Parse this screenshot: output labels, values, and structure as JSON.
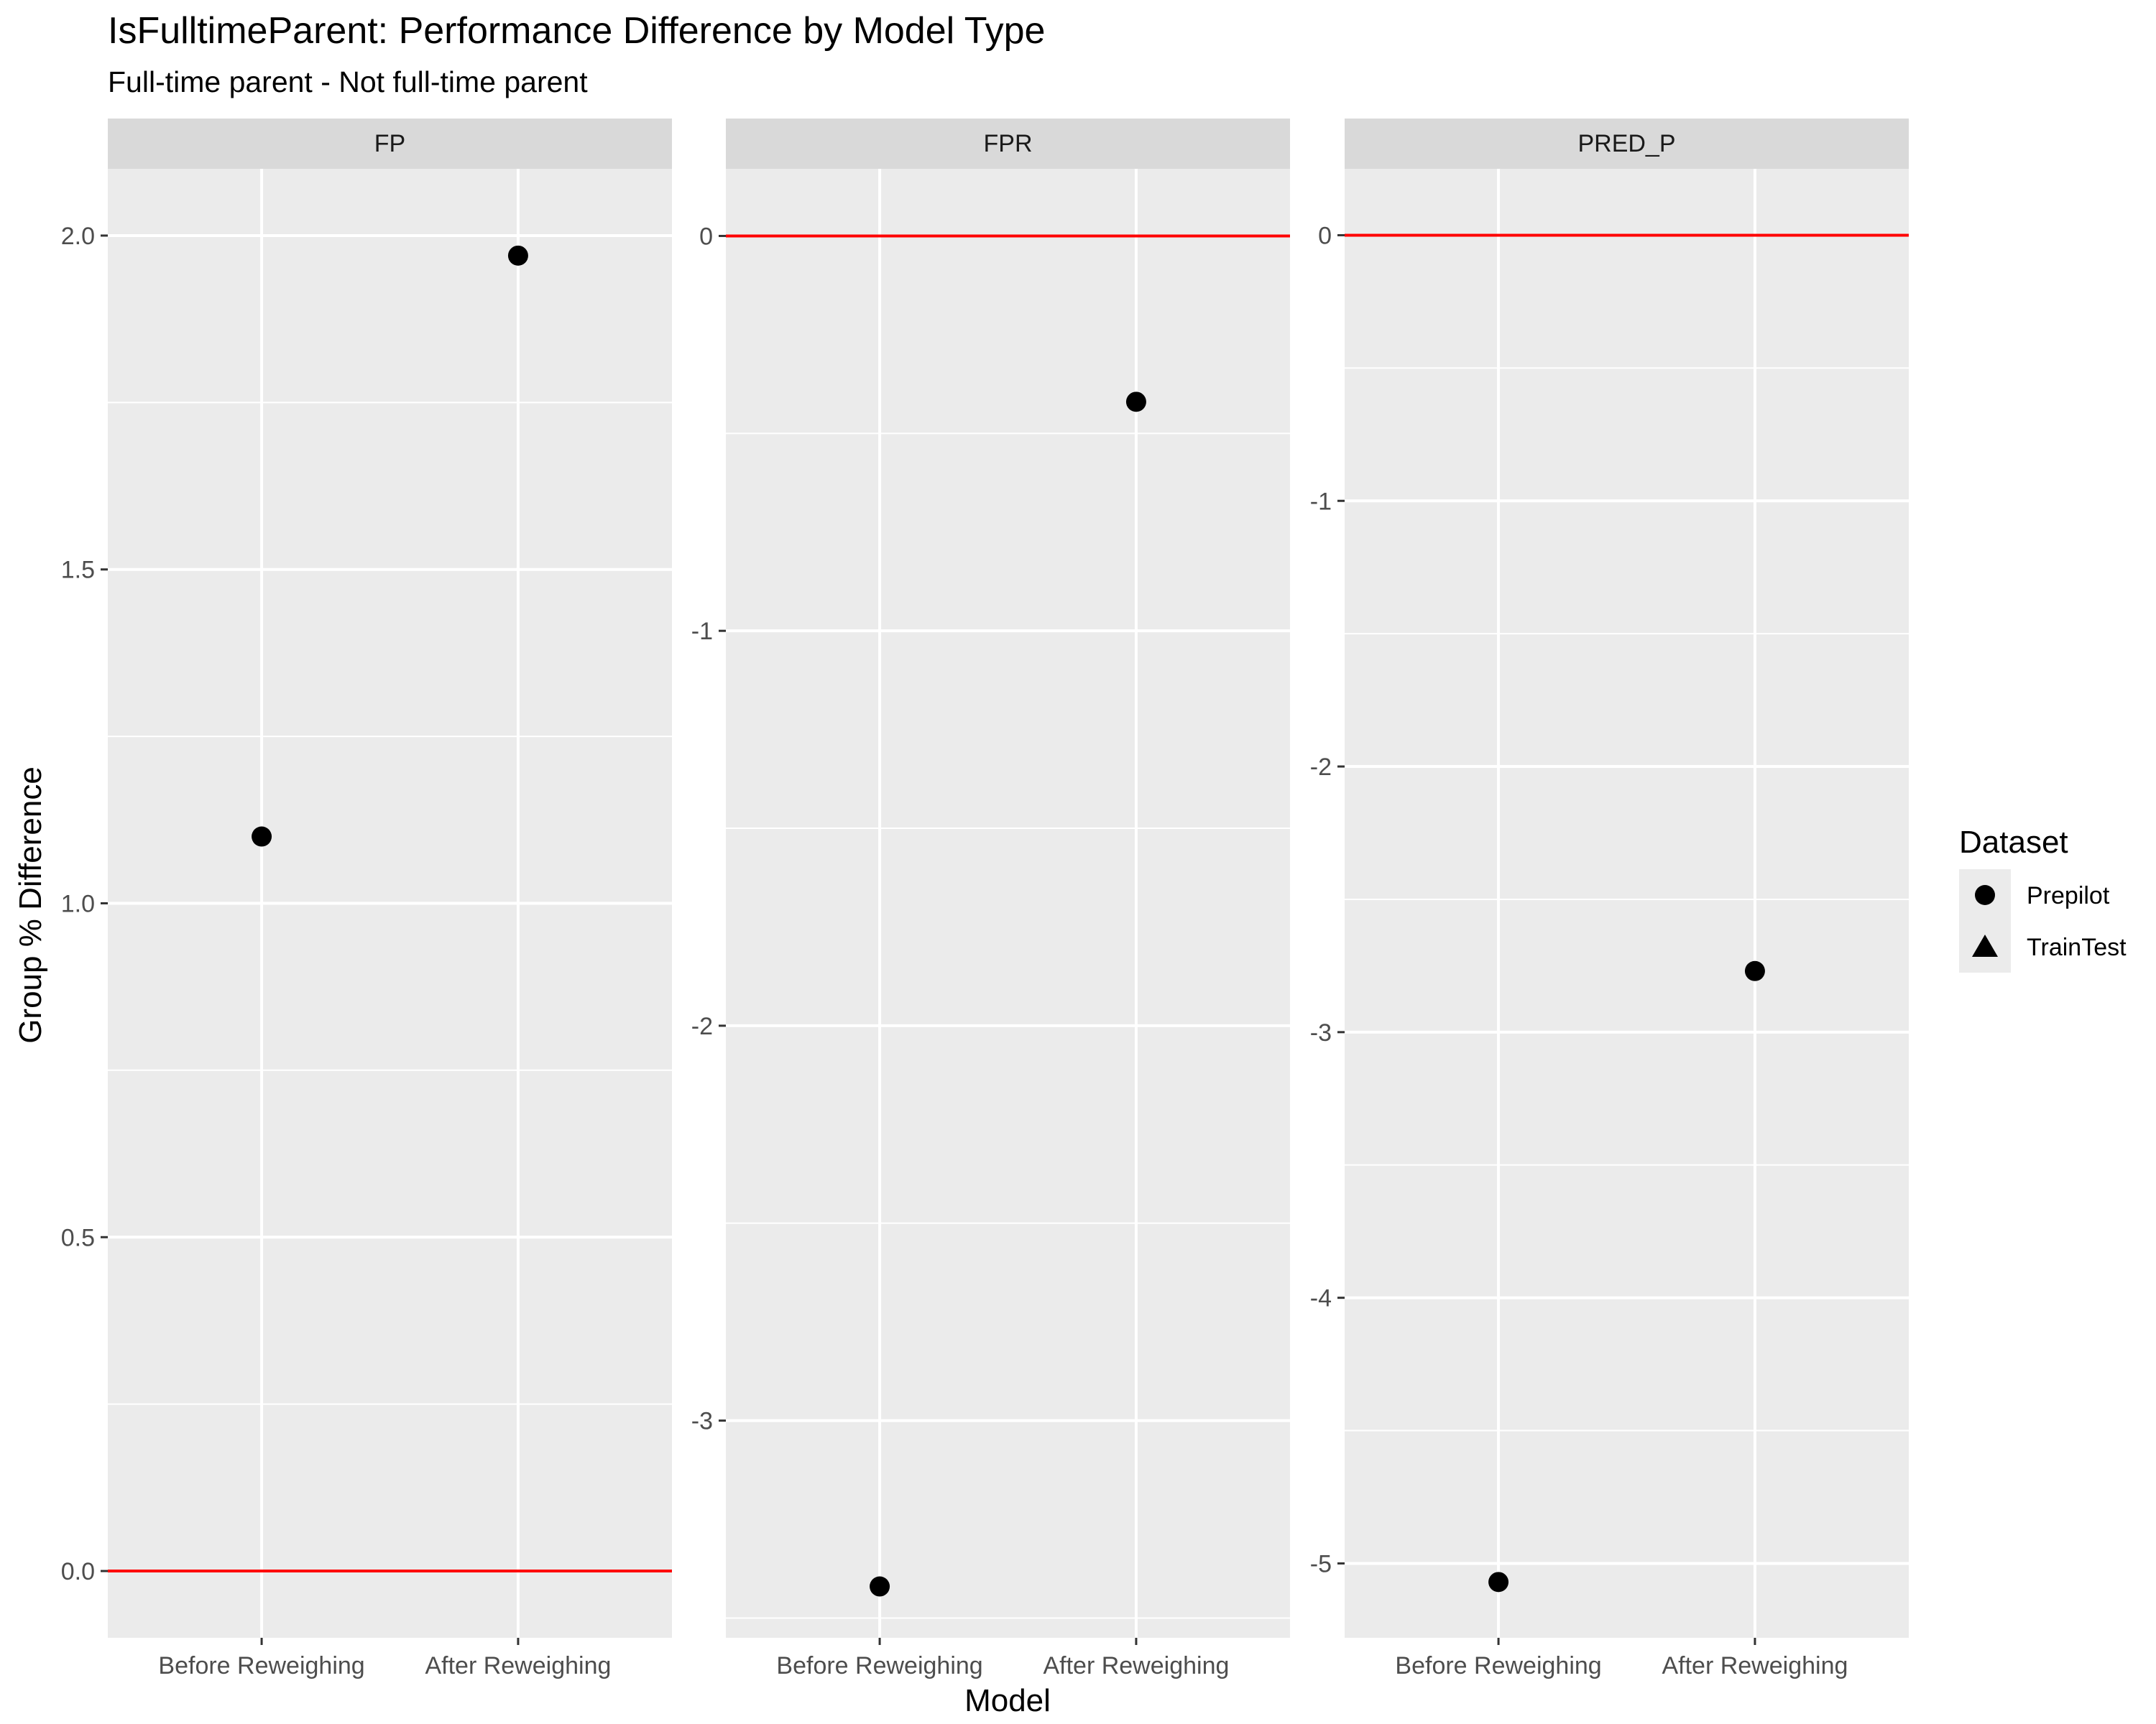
{
  "chart_data": {
    "type": "scatter",
    "title": "IsFulltimeParent: Performance Difference by Model Type",
    "subtitle": "Full-time parent - Not full-time parent",
    "xlabel": "Model",
    "ylabel": "Group % Difference",
    "categories": [
      "Before Reweighing",
      "After Reweighing"
    ],
    "reference_line": {
      "y": 0,
      "color": "#ff0000"
    },
    "grid": true,
    "legend": {
      "title": "Dataset",
      "position": "right",
      "entries": [
        {
          "label": "Prepilot",
          "shape": "circle"
        },
        {
          "label": "TrainTest",
          "shape": "triangle"
        }
      ]
    },
    "panels": [
      {
        "name": "FP",
        "ylim": [
          -0.1,
          2.1
        ],
        "ticks": [
          0.0,
          0.5,
          1.0,
          1.5,
          2.0
        ],
        "tick_labels": [
          "0.0",
          "0.5",
          "1.0",
          "1.5",
          "2.0"
        ],
        "series": [
          {
            "name": "Prepilot",
            "values": [
              1.1,
              1.97
            ]
          }
        ]
      },
      {
        "name": "FPR",
        "ylim": [
          -3.55,
          0.17
        ],
        "ticks": [
          -3,
          -2,
          -1,
          0
        ],
        "tick_labels": [
          "-3",
          "-2",
          "-1",
          "0"
        ],
        "series": [
          {
            "name": "Prepilot",
            "values": [
              -3.42,
              -0.42
            ]
          }
        ]
      },
      {
        "name": "PRED_P",
        "ylim": [
          -5.28,
          0.25
        ],
        "ticks": [
          -5,
          -4,
          -3,
          -2,
          -1,
          0
        ],
        "tick_labels": [
          "-5",
          "-4",
          "-3",
          "-2",
          "-1",
          "0"
        ],
        "series": [
          {
            "name": "Prepilot",
            "values": [
              -5.07,
              -2.77
            ]
          }
        ]
      }
    ]
  },
  "colors": {
    "panel_background": "#ebebeb",
    "strip_background": "#d9d9d9",
    "grid": "#ffffff",
    "point": "#000000",
    "reference_line": "#ff0000"
  }
}
